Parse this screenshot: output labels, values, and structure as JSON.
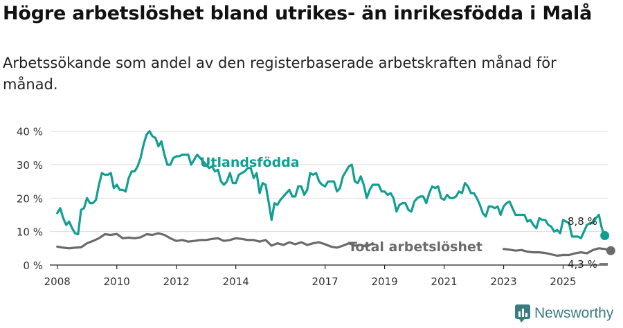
{
  "title": "Högre arbetslöshet bland utrikes- än inrikesfödda i Malå",
  "subtitle": "Arbetssökande som andel av den registerbaserade arbetskraften månad för månad.",
  "brand": "Newsworthy",
  "colors": {
    "foreign": "#119f92",
    "total": "#6a6a6a",
    "grid": "#dddddd",
    "axis": "#222222"
  },
  "chart_data": {
    "type": "line",
    "x_ticks": [
      "2008",
      "2010",
      "2012",
      "2014",
      "2017",
      "2019",
      "2021",
      "2023",
      "2025"
    ],
    "y_ticks": [
      "0 %",
      "10 %",
      "20 %",
      "30 %",
      "40 %"
    ],
    "ylim": [
      0,
      42
    ],
    "xlim": [
      2007.75,
      2026.5
    ],
    "series": [
      {
        "name": "Utlandsfödda",
        "end_label": "8,8 %",
        "points": [
          [
            2008.0,
            15.5
          ],
          [
            2008.1,
            17
          ],
          [
            2008.2,
            14
          ],
          [
            2008.3,
            12
          ],
          [
            2008.4,
            13
          ],
          [
            2008.5,
            11
          ],
          [
            2008.6,
            9.5
          ],
          [
            2008.7,
            9.2
          ],
          [
            2008.8,
            16.5
          ],
          [
            2008.9,
            17
          ],
          [
            2009.0,
            20
          ],
          [
            2009.1,
            18.5
          ],
          [
            2009.2,
            18.5
          ],
          [
            2009.3,
            19.5
          ],
          [
            2009.4,
            24
          ],
          [
            2009.5,
            27.5
          ],
          [
            2009.6,
            27
          ],
          [
            2009.7,
            27
          ],
          [
            2009.8,
            27.5
          ],
          [
            2009.9,
            23
          ],
          [
            2010.0,
            24
          ],
          [
            2010.1,
            22.5
          ],
          [
            2010.2,
            22.5
          ],
          [
            2010.3,
            22
          ],
          [
            2010.4,
            26
          ],
          [
            2010.5,
            28
          ],
          [
            2010.6,
            28
          ],
          [
            2010.7,
            29.5
          ],
          [
            2010.8,
            32
          ],
          [
            2010.9,
            36
          ],
          [
            2011.0,
            39
          ],
          [
            2011.1,
            40
          ],
          [
            2011.2,
            38.5
          ],
          [
            2011.3,
            38
          ],
          [
            2011.4,
            35.5
          ],
          [
            2011.5,
            37
          ],
          [
            2011.6,
            33
          ],
          [
            2011.7,
            30
          ],
          [
            2011.8,
            30
          ],
          [
            2011.9,
            32
          ],
          [
            2012.0,
            32.5
          ],
          [
            2012.1,
            32.5
          ],
          [
            2012.2,
            33
          ],
          [
            2012.3,
            33
          ],
          [
            2012.4,
            33
          ],
          [
            2012.5,
            30
          ],
          [
            2012.6,
            31.5
          ],
          [
            2012.7,
            33
          ],
          [
            2013.0,
            30
          ],
          [
            2013.1,
            29
          ],
          [
            2013.2,
            29.5
          ],
          [
            2013.3,
            28
          ],
          [
            2013.4,
            28.5
          ],
          [
            2013.5,
            25
          ],
          [
            2013.6,
            24
          ],
          [
            2013.7,
            25
          ],
          [
            2013.8,
            27.5
          ],
          [
            2013.9,
            24.5
          ],
          [
            2014.0,
            24.5
          ],
          [
            2014.1,
            27
          ],
          [
            2014.2,
            27.5
          ],
          [
            2014.3,
            28
          ],
          [
            2014.4,
            29
          ],
          [
            2014.5,
            29
          ],
          [
            2014.6,
            26
          ],
          [
            2014.7,
            27.5
          ],
          [
            2014.8,
            21.5
          ],
          [
            2014.9,
            24.5
          ],
          [
            2015.0,
            24
          ],
          [
            2015.1,
            19
          ],
          [
            2015.2,
            13.5
          ],
          [
            2015.3,
            18.5
          ],
          [
            2015.4,
            18
          ],
          [
            2015.5,
            19.5
          ],
          [
            2015.6,
            20.5
          ],
          [
            2015.7,
            21.5
          ],
          [
            2015.8,
            22.5
          ],
          [
            2015.9,
            20.5
          ],
          [
            2016.0,
            20.5
          ],
          [
            2016.1,
            23.5
          ],
          [
            2016.2,
            23.5
          ],
          [
            2016.3,
            21
          ],
          [
            2016.4,
            22.5
          ],
          [
            2016.5,
            27.5
          ],
          [
            2016.6,
            27
          ],
          [
            2016.7,
            27.5
          ],
          [
            2016.8,
            25
          ],
          [
            2016.9,
            24
          ],
          [
            2017.0,
            23.5
          ],
          [
            2017.1,
            25
          ],
          [
            2017.2,
            25
          ],
          [
            2017.3,
            25
          ],
          [
            2017.4,
            22
          ],
          [
            2017.5,
            23
          ],
          [
            2017.6,
            26.5
          ],
          [
            2017.7,
            28
          ],
          [
            2017.8,
            29.5
          ],
          [
            2017.9,
            30
          ],
          [
            2018.0,
            25
          ],
          [
            2018.1,
            24.5
          ],
          [
            2018.2,
            26.5
          ],
          [
            2018.3,
            24
          ],
          [
            2018.4,
            20
          ],
          [
            2018.5,
            22.5
          ],
          [
            2018.6,
            24
          ],
          [
            2018.7,
            24
          ],
          [
            2018.8,
            24
          ],
          [
            2018.9,
            22
          ],
          [
            2019.0,
            22
          ],
          [
            2019.1,
            21
          ],
          [
            2019.2,
            21.5
          ],
          [
            2019.3,
            20
          ],
          [
            2019.4,
            16
          ],
          [
            2019.5,
            18
          ],
          [
            2019.6,
            18.5
          ],
          [
            2019.7,
            18.5
          ],
          [
            2019.8,
            16.5
          ],
          [
            2019.9,
            16
          ],
          [
            2020.0,
            19
          ],
          [
            2020.1,
            20
          ],
          [
            2020.2,
            20.5
          ],
          [
            2020.3,
            20.5
          ],
          [
            2020.4,
            18.5
          ],
          [
            2020.5,
            21.5
          ],
          [
            2020.6,
            23.5
          ],
          [
            2020.7,
            23
          ],
          [
            2020.8,
            23.5
          ],
          [
            2020.9,
            20
          ],
          [
            2021.0,
            19.5
          ],
          [
            2021.1,
            21
          ],
          [
            2021.2,
            20
          ],
          [
            2021.3,
            20
          ],
          [
            2021.4,
            20.5
          ],
          [
            2021.5,
            22
          ],
          [
            2021.6,
            21.5
          ],
          [
            2021.7,
            24.5
          ],
          [
            2021.8,
            23.5
          ],
          [
            2021.9,
            21.5
          ],
          [
            2022.0,
            21.5
          ],
          [
            2022.1,
            20
          ],
          [
            2022.2,
            18
          ],
          [
            2022.3,
            15.5
          ],
          [
            2022.4,
            14.5
          ],
          [
            2022.5,
            17.5
          ],
          [
            2022.6,
            17.5
          ],
          [
            2022.7,
            17
          ],
          [
            2022.8,
            17.5
          ],
          [
            2022.9,
            15
          ],
          [
            2023.0,
            17.5
          ],
          [
            2023.1,
            18.5
          ],
          [
            2023.2,
            19
          ],
          [
            2023.3,
            17
          ],
          [
            2023.4,
            15
          ],
          [
            2023.5,
            15
          ],
          [
            2023.6,
            15
          ],
          [
            2023.7,
            15
          ],
          [
            2023.8,
            13
          ],
          [
            2023.9,
            13.5
          ],
          [
            2024.0,
            12
          ],
          [
            2024.1,
            11
          ],
          [
            2024.2,
            14
          ],
          [
            2024.3,
            13.5
          ],
          [
            2024.4,
            13.5
          ],
          [
            2024.5,
            12
          ],
          [
            2024.6,
            11.5
          ],
          [
            2024.7,
            10
          ],
          [
            2024.8,
            10.5
          ],
          [
            2024.9,
            9.5
          ],
          [
            2025.0,
            13.5
          ],
          [
            2025.1,
            13
          ],
          [
            2025.2,
            12.5
          ],
          [
            2025.3,
            8.5
          ],
          [
            2025.4,
            8.5
          ],
          [
            2025.5,
            8.5
          ],
          [
            2025.6,
            8
          ],
          [
            2025.7,
            10
          ],
          [
            2025.8,
            12
          ],
          [
            2025.9,
            12.5
          ],
          [
            2026.0,
            12.5
          ],
          [
            2026.1,
            14
          ],
          [
            2026.2,
            15
          ],
          [
            2026.3,
            11
          ],
          [
            2026.4,
            8.8
          ]
        ]
      },
      {
        "name": "Total arbetslöshet",
        "end_label": "4,3 %",
        "points": [
          [
            2008.0,
            5.5
          ],
          [
            2008.2,
            5.2
          ],
          [
            2008.4,
            5
          ],
          [
            2008.6,
            5.2
          ],
          [
            2008.8,
            5.3
          ],
          [
            2009.0,
            6.5
          ],
          [
            2009.2,
            7.2
          ],
          [
            2009.4,
            8
          ],
          [
            2009.6,
            9.2
          ],
          [
            2009.8,
            9
          ],
          [
            2010.0,
            9.3
          ],
          [
            2010.2,
            8
          ],
          [
            2010.4,
            8.2
          ],
          [
            2010.6,
            8
          ],
          [
            2010.8,
            8.3
          ],
          [
            2011.0,
            9.2
          ],
          [
            2011.2,
            9
          ],
          [
            2011.4,
            9.5
          ],
          [
            2011.6,
            9
          ],
          [
            2011.8,
            8
          ],
          [
            2012.0,
            7.2
          ],
          [
            2012.2,
            7.5
          ],
          [
            2012.4,
            7
          ],
          [
            2012.6,
            7.2
          ],
          [
            2012.8,
            7.5
          ],
          [
            2013.0,
            7.5
          ],
          [
            2013.2,
            7.8
          ],
          [
            2013.4,
            8
          ],
          [
            2013.6,
            7.2
          ],
          [
            2013.8,
            7.5
          ],
          [
            2014.0,
            8
          ],
          [
            2014.2,
            7.8
          ],
          [
            2014.4,
            7.5
          ],
          [
            2014.6,
            7.5
          ],
          [
            2014.8,
            7
          ],
          [
            2015.0,
            7.5
          ],
          [
            2015.2,
            5.8
          ],
          [
            2015.4,
            6.5
          ],
          [
            2015.6,
            6
          ],
          [
            2015.8,
            6.8
          ],
          [
            2016.0,
            6.2
          ],
          [
            2016.2,
            6.8
          ],
          [
            2016.4,
            6
          ],
          [
            2016.6,
            6.5
          ],
          [
            2016.8,
            6.8
          ],
          [
            2017.0,
            6.2
          ],
          [
            2017.2,
            5.5
          ],
          [
            2017.4,
            5.2
          ],
          [
            2017.6,
            5.8
          ],
          [
            2017.8,
            6.5
          ],
          [
            2018.0,
            5.8
          ],
          [
            2018.2,
            6
          ],
          [
            2018.4,
            5.5
          ],
          [
            2018.6,
            6.5
          ],
          [
            2023.0,
            4.8
          ],
          [
            2023.2,
            4.6
          ],
          [
            2023.4,
            4.3
          ],
          [
            2023.6,
            4.5
          ],
          [
            2023.8,
            4
          ],
          [
            2024.0,
            3.8
          ],
          [
            2024.2,
            3.8
          ],
          [
            2024.4,
            3.6
          ],
          [
            2024.6,
            3.2
          ],
          [
            2024.8,
            2.8
          ],
          [
            2025.0,
            3
          ],
          [
            2025.2,
            3
          ],
          [
            2025.4,
            3.5
          ],
          [
            2025.6,
            3.8
          ],
          [
            2025.8,
            3.5
          ],
          [
            2026.0,
            4.5
          ],
          [
            2026.2,
            5
          ],
          [
            2026.4,
            4.8
          ],
          [
            2026.6,
            4.3
          ]
        ]
      }
    ]
  }
}
